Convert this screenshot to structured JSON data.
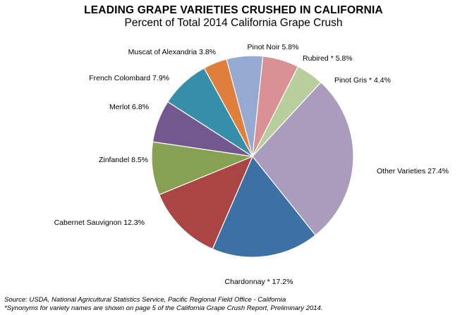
{
  "chart_data": {
    "type": "pie",
    "title": "LEADING GRAPE VARIETIES CRUSHED IN CALIFORNIA",
    "subtitle": "Percent of Total 2014 California Grape Crush",
    "slices": [
      {
        "name": "Pinot Noir",
        "value": 5.8,
        "label": "Pinot Noir  5.8%",
        "color": "#95a9d1"
      },
      {
        "name": "Rubired*",
        "value": 5.8,
        "label": "Rubired *  5.8%",
        "color": "#d99193"
      },
      {
        "name": "Pinot Gris*",
        "value": 4.4,
        "label": "Pinot Gris *  4.4%",
        "color": "#b8cf9d"
      },
      {
        "name": "Other Varieties",
        "value": 27.4,
        "label": "Other Varieties  27.4%",
        "color": "#a99cbd"
      },
      {
        "name": "Chardonnay*",
        "value": 17.2,
        "label": "Chardonnay *  17.2%",
        "color": "#3d71a6"
      },
      {
        "name": "Cabernet Sauvignon",
        "value": 12.3,
        "label": "Cabernet Sauvignon  12.3%",
        "color": "#ab4543"
      },
      {
        "name": "Zinfandel",
        "value": 8.5,
        "label": "Zinfandel  8.5%",
        "color": "#87a153"
      },
      {
        "name": "Merlot",
        "value": 6.8,
        "label": "Merlot  6.8%",
        "color": "#72588e"
      },
      {
        "name": "French Colombard",
        "value": 7.9,
        "label": "French Colombard  7.9%",
        "color": "#358fa8"
      },
      {
        "name": "Muscat of Alexandria",
        "value": 3.8,
        "label": "Muscat of Alexandria  3.8%",
        "color": "#e07f3c"
      }
    ]
  },
  "footnotes": {
    "source": "Source: USDA, National Agricultural Statistics Service, Pacific Regional Field Office - California",
    "synonyms": "*Synonyms for variety names are shown on page 5 of the California Grape Crush Report, Preliminary 2014."
  }
}
